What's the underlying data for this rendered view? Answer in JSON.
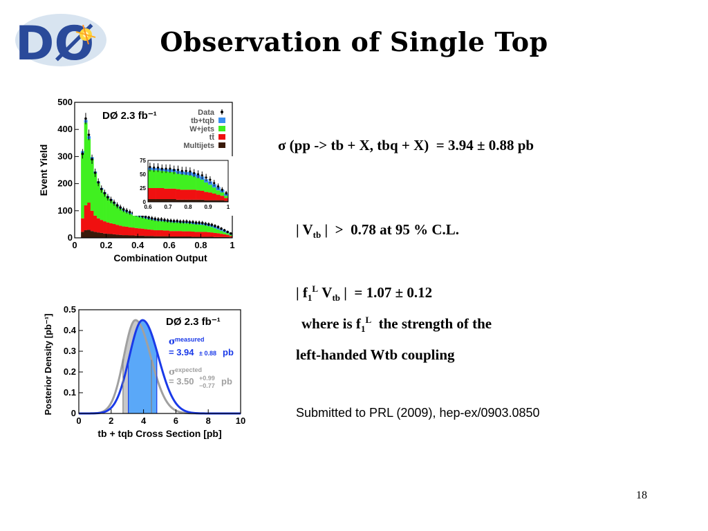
{
  "slide": {
    "title": "Observation of Single Top",
    "page_number": "18"
  },
  "logo": {
    "text": "DØ"
  },
  "text": {
    "sigma_prefix": "σ (pp -> tb + X, tbq + X)",
    "sigma_value": "= 3.94 ± 0.88 pb",
    "vtb_open": "| V",
    "vtb_sub": "tb",
    "vtb_close": "|",
    "vtb_rel": ">",
    "vtb_value": "0.78 at 95 % C.L.",
    "f1_open": "| f",
    "f1_sub": "1",
    "f1_sup": "L",
    "f1_v": "V",
    "f1_vsub": "tb",
    "f1_close": "|",
    "f1_value": "= 1.07 ± 0.12",
    "where_prefix": "where is f",
    "where_sub": "1",
    "where_sup": "L",
    "where_suffix": "the strength of the",
    "where_line2": "left-handed Wtb coupling",
    "submitted": "Submitted to PRL (2009), hep-ex/0903.0850"
  },
  "colors": {
    "tb_tqb": "#3a8ff0",
    "wjets": "#40f020",
    "ttbar": "#f01010",
    "multijets": "#3a1a0a",
    "measured": "#1a3ae8",
    "expected": "#a0a0a0",
    "axis": "#000000"
  },
  "chart_data": [
    {
      "type": "bar",
      "label": "DØ  2.3 fb⁻¹",
      "xlabel": "Combination Output",
      "ylabel": "Event Yield",
      "xlim": [
        0,
        1
      ],
      "ylim": [
        0,
        500
      ],
      "xticks": [
        "0",
        "0.2",
        "0.4",
        "0.6",
        "0.8",
        "1"
      ],
      "yticks": [
        "0",
        "100",
        "200",
        "300",
        "400",
        "500"
      ],
      "legend": {
        "position": "top-right",
        "entries": [
          "Data",
          "tb+tqb",
          "W+jets",
          "tt̄",
          "Multijets"
        ]
      },
      "bin_edges": [
        0.04,
        0.06,
        0.08,
        0.1,
        0.12,
        0.14,
        0.16,
        0.18,
        0.2,
        0.22,
        0.24,
        0.26,
        0.28,
        0.3,
        0.32,
        0.34,
        0.36,
        0.38,
        0.4,
        0.42,
        0.44,
        0.46,
        0.48,
        0.5,
        0.52,
        0.54,
        0.56,
        0.58,
        0.6,
        0.62,
        0.64,
        0.66,
        0.68,
        0.7,
        0.72,
        0.74,
        0.76,
        0.78,
        0.8,
        0.82,
        0.84,
        0.86,
        0.88,
        0.9,
        0.92,
        0.94,
        0.96,
        0.98,
        1.0
      ],
      "series": [
        {
          "name": "Multijets",
          "values": [
            22,
            28,
            30,
            25,
            22,
            20,
            18,
            16,
            15,
            14,
            13,
            12,
            11,
            10,
            10,
            9,
            9,
            8,
            8,
            8,
            7,
            7,
            7,
            6,
            6,
            6,
            6,
            6,
            5,
            5,
            5,
            5,
            5,
            5,
            5,
            4,
            4,
            4,
            4,
            4,
            4,
            4,
            3,
            3,
            3,
            3,
            3,
            2
          ]
        },
        {
          "name": "tt̄",
          "values": [
            50,
            92,
            100,
            75,
            60,
            52,
            48,
            45,
            42,
            40,
            38,
            36,
            34,
            32,
            31,
            30,
            29,
            28,
            27,
            26,
            25,
            24,
            23,
            22,
            22,
            22,
            21,
            21,
            20,
            20,
            20,
            20,
            19,
            19,
            19,
            19,
            18,
            18,
            18,
            18,
            17,
            16,
            15,
            14,
            12,
            10,
            8,
            5
          ]
        },
        {
          "name": "W+jets",
          "values": [
            240,
            305,
            235,
            190,
            156,
            130,
            112,
            102,
            92,
            84,
            75,
            68,
            62,
            57,
            53,
            50,
            48,
            45,
            43,
            41,
            40,
            38,
            37,
            36,
            35,
            34,
            34,
            33,
            33,
            32,
            32,
            31,
            31,
            30,
            30,
            28,
            28,
            27,
            26,
            24,
            22,
            20,
            17,
            14,
            11,
            8,
            6,
            4
          ]
        },
        {
          "name": "tb+tqb",
          "values": [
            8,
            10,
            10,
            8,
            7,
            6,
            6,
            5,
            5,
            5,
            5,
            5,
            4,
            4,
            4,
            4,
            4,
            4,
            4,
            4,
            4,
            4,
            4,
            4,
            4,
            4,
            4,
            4,
            4,
            4,
            4,
            4,
            4,
            5,
            5,
            5,
            5,
            5,
            6,
            6,
            6,
            6,
            6,
            6,
            6,
            6,
            5,
            4
          ]
        },
        {
          "name": "Data",
          "values": [
            310,
            440,
            380,
            290,
            240,
            205,
            180,
            165,
            150,
            140,
            130,
            120,
            112,
            105,
            100,
            95,
            92,
            88,
            84,
            80,
            78,
            75,
            72,
            70,
            68,
            68,
            66,
            64,
            63,
            62,
            62,
            60,
            60,
            60,
            58,
            58,
            56,
            56,
            55,
            52,
            50,
            48,
            44,
            40,
            34,
            28,
            22,
            16
          ]
        }
      ],
      "inset": {
        "xlim": [
          0.6,
          1.0
        ],
        "ylim": [
          0,
          75
        ],
        "xticks": [
          "0.6",
          "0.7",
          "0.8",
          "0.9",
          "1"
        ],
        "yticks": [
          "0",
          "25",
          "50",
          "75"
        ]
      }
    },
    {
      "type": "line",
      "label": "DØ  2.3 fb⁻¹",
      "xlabel": "tb + tqb  Cross Section  [pb]",
      "ylabel": "Posterior Density  [pb⁻¹]",
      "xlim": [
        0,
        10
      ],
      "ylim": [
        0,
        0.5
      ],
      "xticks": [
        "0",
        "2",
        "4",
        "6",
        "8",
        "10"
      ],
      "yticks": [
        "0",
        "0.1",
        "0.2",
        "0.3",
        "0.4",
        "0.5"
      ],
      "series": [
        {
          "name": "measured",
          "peak": 3.94,
          "sigma": 0.88,
          "band": [
            3.06,
            4.82
          ],
          "peak_density": 0.45
        },
        {
          "name": "expected",
          "peak": 3.5,
          "band": [
            2.73,
            4.49
          ],
          "peak_density": 0.45
        }
      ],
      "annotations": {
        "measured_label": "measured",
        "measured_value": "= 3.94",
        "measured_err": "± 0.88",
        "measured_unit": "pb",
        "expected_label": "expected",
        "expected_value": "= 3.50",
        "expected_up": "+0.99",
        "expected_down": "−0.77",
        "expected_unit": "pb"
      }
    }
  ]
}
